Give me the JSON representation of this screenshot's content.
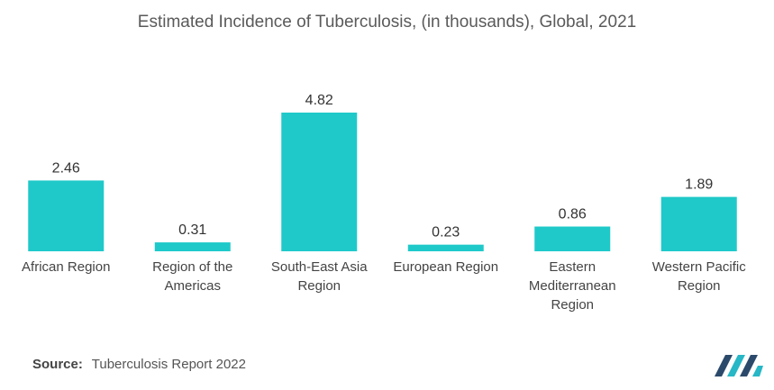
{
  "chart_data": {
    "type": "bar",
    "title": "Estimated Incidence of Tuberculosis, (in thousands), Global, 2021",
    "categories": [
      "African Region",
      "Region of the Americas",
      "South-East Asia Region",
      "European Region",
      "Eastern Mediterranean Region",
      "Western Pacific Region"
    ],
    "category_lines": [
      [
        "African Region"
      ],
      [
        "Region of the",
        "Americas"
      ],
      [
        "South-East Asia",
        "Region"
      ],
      [
        "European Region"
      ],
      [
        "Eastern",
        "Mediterranean",
        "Region"
      ],
      [
        "Western Pacific",
        "Region"
      ]
    ],
    "values": [
      2.46,
      0.31,
      4.82,
      0.23,
      0.86,
      1.89
    ],
    "data_labels": [
      "2.46",
      "0.31",
      "4.82",
      "0.23",
      "0.86",
      "1.89"
    ],
    "ylim": [
      0,
      4.82
    ],
    "grid": false,
    "bar_color": "#1fc9c9"
  },
  "source": {
    "label": "Source:",
    "text": "Tuberculosis Report 2022"
  },
  "colors": {
    "logo_dark": "#2b4a6b",
    "logo_teal": "#27b7c6"
  }
}
